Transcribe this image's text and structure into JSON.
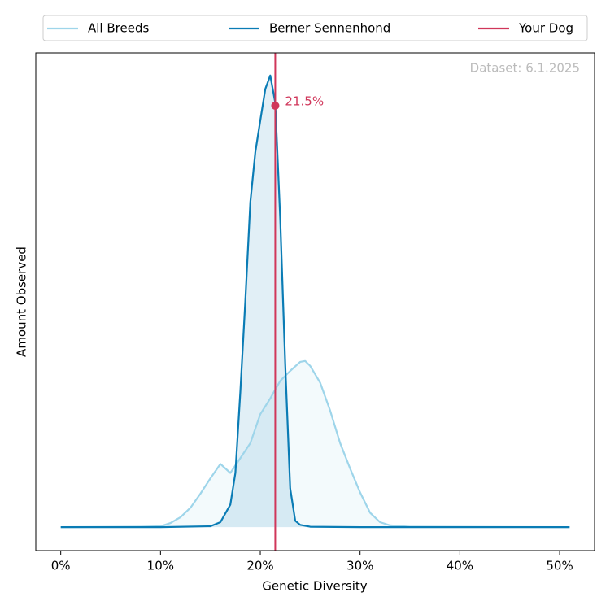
{
  "chart_data": {
    "type": "density",
    "xlabel": "Genetic Diversity",
    "ylabel": "Amount Observed",
    "annotation": "Dataset: 6.1.2025",
    "legend": "top",
    "xlim": [
      -2.5,
      53.5
    ],
    "ylim": [
      -0.052,
      1.05
    ],
    "xticks": [
      {
        "value": 0,
        "label": "0%"
      },
      {
        "value": 10,
        "label": "10%"
      },
      {
        "value": 20,
        "label": "20%"
      },
      {
        "value": 30,
        "label": "30%"
      },
      {
        "value": 40,
        "label": "40%"
      },
      {
        "value": 50,
        "label": "50%"
      }
    ],
    "series": [
      {
        "name": "All Breeds",
        "color": "#9ed5ea",
        "x": [
          0,
          8,
          10,
          11,
          12,
          13,
          14,
          15,
          16,
          17,
          18,
          19,
          20,
          21,
          22,
          23,
          24,
          24.5,
          25,
          26,
          27,
          28,
          29,
          30,
          31,
          32,
          33,
          35,
          51
        ],
        "values": [
          0,
          0.001,
          0.002,
          0.009,
          0.022,
          0.043,
          0.074,
          0.108,
          0.14,
          0.12,
          0.153,
          0.186,
          0.25,
          0.285,
          0.324,
          0.346,
          0.366,
          0.368,
          0.357,
          0.32,
          0.258,
          0.186,
          0.13,
          0.077,
          0.032,
          0.011,
          0.004,
          0.001,
          0
        ]
      },
      {
        "name": "Berner Sennenhond",
        "color": "#0a7cb5",
        "x": [
          0,
          10,
          15,
          16,
          17,
          17.5,
          18,
          18.5,
          19,
          19.5,
          20,
          20.5,
          21,
          21.5,
          22,
          22.5,
          23,
          23.5,
          24,
          25,
          30,
          51
        ],
        "values": [
          0,
          0,
          0.002,
          0.011,
          0.05,
          0.12,
          0.3,
          0.5,
          0.72,
          0.83,
          0.9,
          0.97,
          1.0,
          0.94,
          0.68,
          0.36,
          0.086,
          0.014,
          0.005,
          0.001,
          0,
          0
        ]
      }
    ],
    "your_dog": {
      "name": "Your Dog",
      "color": "#d0365a",
      "x": 21.5,
      "y": 0.933,
      "label": "21.5%"
    }
  }
}
